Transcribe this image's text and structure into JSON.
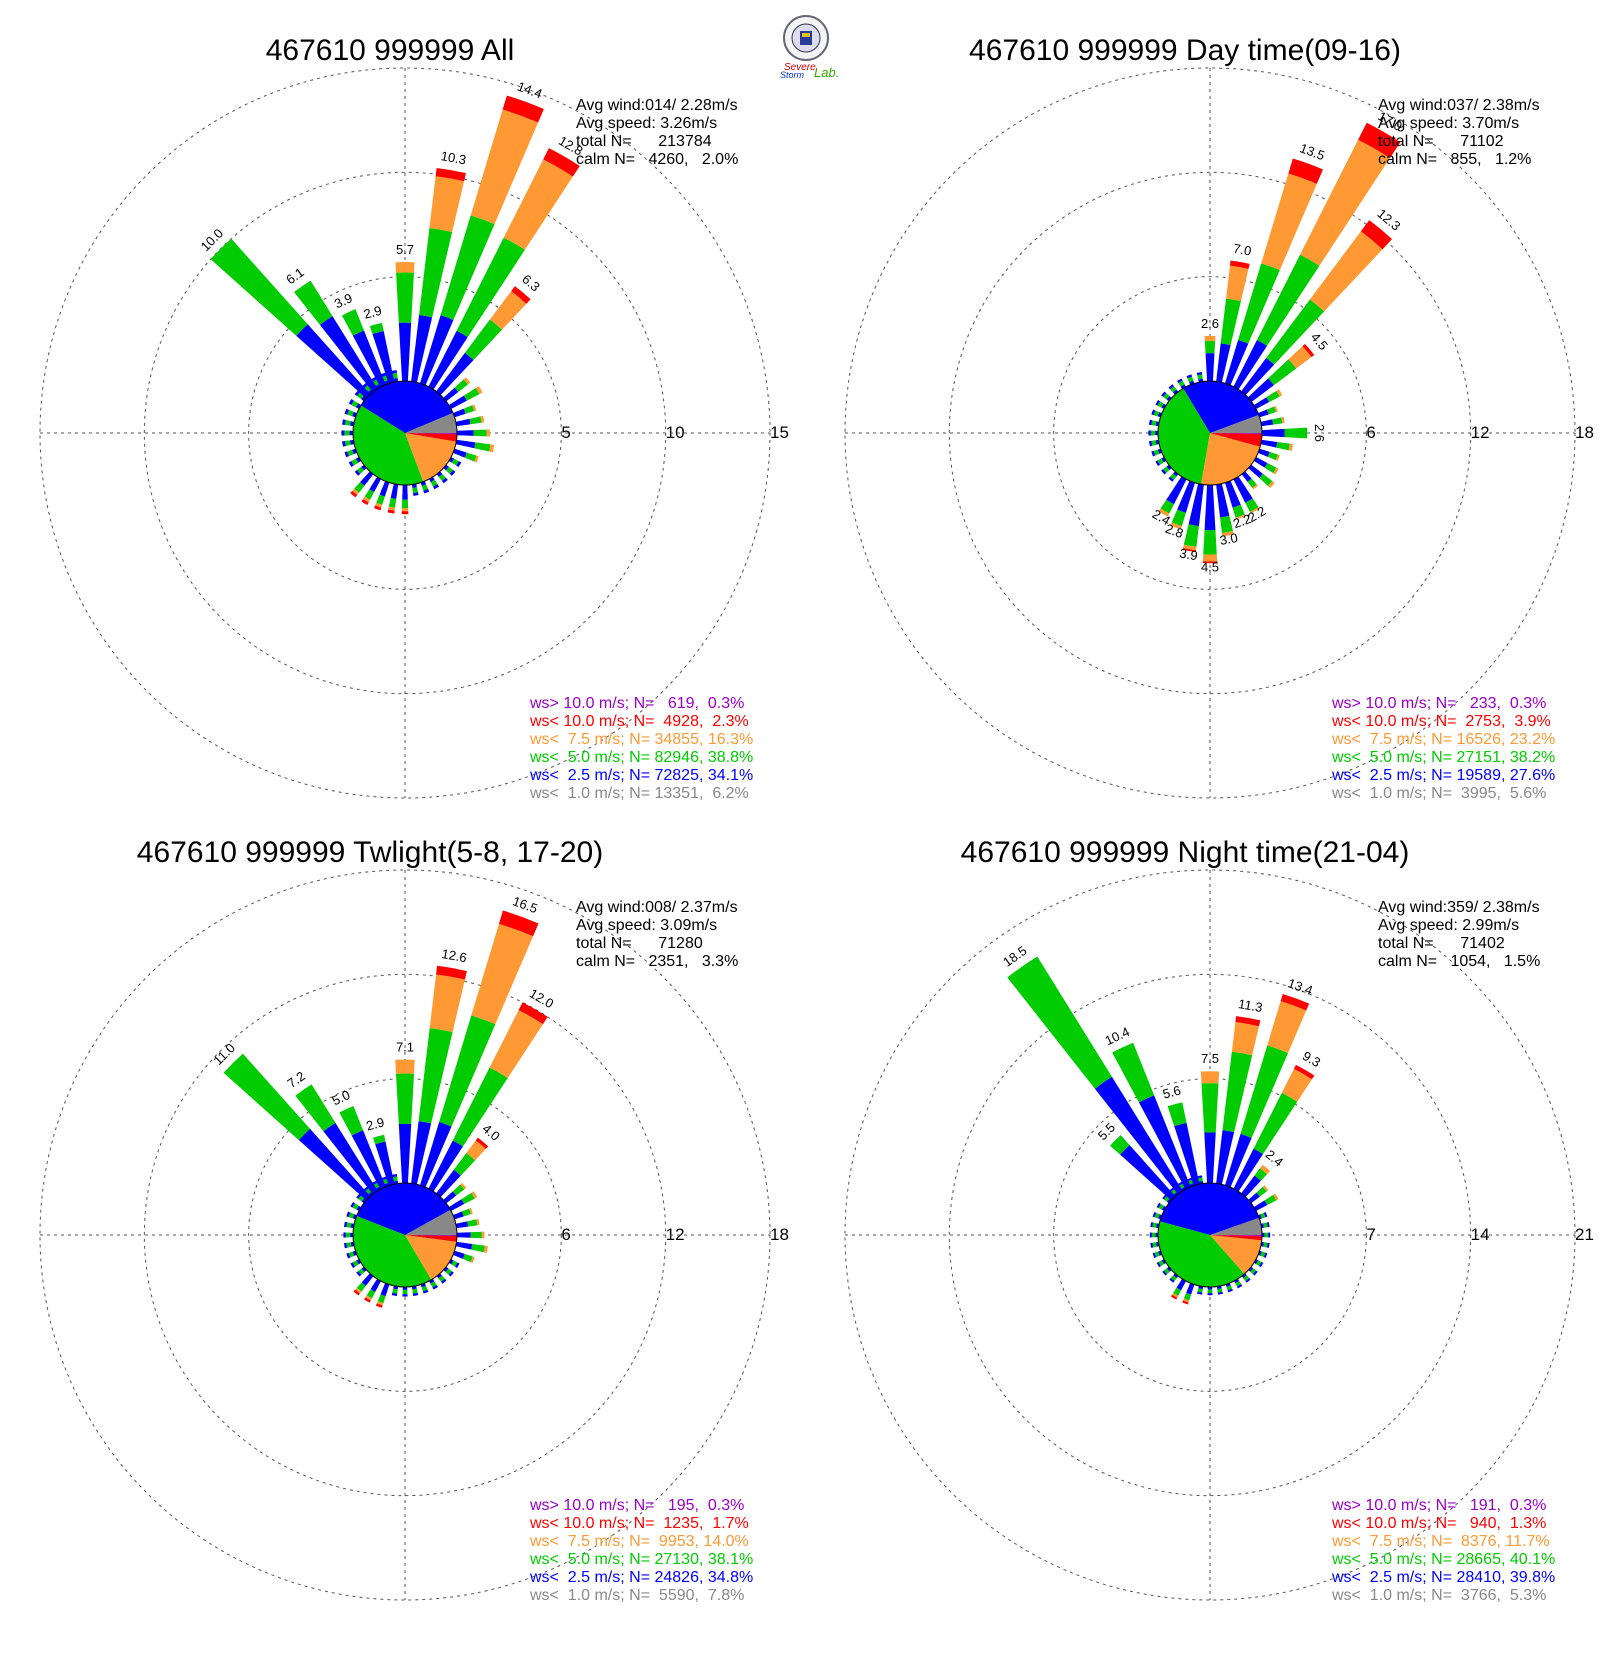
{
  "logo": {
    "top_text": "Severe",
    "bottom_text": "Storm",
    "lab_text": "Lab."
  },
  "colors": {
    "ws_gt10": "#9a00c8",
    "ws_lt10": "#ff0000",
    "ws_lt7_5": "#ff9933",
    "ws_lt5": "#00cc00",
    "ws_lt2_5": "#0000ff",
    "ws_lt1": "#888888",
    "grid": "#555555",
    "text": "#000000"
  },
  "chart_data": [
    {
      "type": "wind-rose",
      "title": "467610 999999 All",
      "rings": [
        5,
        10,
        15
      ],
      "ring_labels": [
        "5",
        "10",
        "15"
      ],
      "stats": [
        "Avg wind:014/ 2.28m/s",
        "Avg speed: 3.26m/s",
        "total N=      213784",
        "calm N=   4260,   2.0%"
      ],
      "legend": [
        {
          "text": "ws> 10.0 m/s; N=   619,  0.3%",
          "color_key": "ws_gt10"
        },
        {
          "text": "ws< 10.0 m/s; N=  4928,  2.3%",
          "color_key": "ws_lt10"
        },
        {
          "text": "ws<  7.5 m/s; N= 34855, 16.3%",
          "color_key": "ws_lt7_5"
        },
        {
          "text": "ws<  5.0 m/s; N= 82946, 38.8%",
          "color_key": "ws_lt5"
        },
        {
          "text": "ws<  2.5 m/s; N= 72825, 34.1%",
          "color_key": "ws_lt2_5"
        },
        {
          "text": "ws<  1.0 m/s; N= 13351,  6.2%",
          "color_key": "ws_lt1"
        }
      ],
      "pie": [
        6.2,
        34.1,
        38.8,
        16.3,
        2.3,
        0.3
      ],
      "spikes": [
        {
          "dir": 315,
          "total": 10.0,
          "parts": [
            0,
            4.5,
            5.5,
            0,
            0,
            0
          ],
          "label": "10.0"
        },
        {
          "dir": 325,
          "total": 6.1,
          "parts": [
            0,
            4.1,
            2.0,
            0,
            0,
            0
          ],
          "label": "6.1"
        },
        {
          "dir": 335,
          "total": 3.9,
          "parts": [
            0,
            2.8,
            1.1,
            0,
            0,
            0
          ],
          "label": "3.9"
        },
        {
          "dir": 345,
          "total": 2.9,
          "parts": [
            0,
            2.5,
            0.4,
            0,
            0,
            0
          ],
          "label": "2.9"
        },
        {
          "dir": 0,
          "total": 5.7,
          "parts": [
            0,
            2.8,
            2.4,
            0.5,
            0,
            0
          ],
          "label": "5.7"
        },
        {
          "dir": 10,
          "total": 10.3,
          "parts": [
            0,
            3.2,
            4.2,
            2.5,
            0.4,
            0
          ],
          "label": "10.3"
        },
        {
          "dir": 20,
          "total": 14.4,
          "parts": [
            0,
            3.4,
            5.0,
            5.3,
            0.7,
            0
          ],
          "label": "14.4"
        },
        {
          "dir": 30,
          "total": 12.8,
          "parts": [
            0,
            3.0,
            5.0,
            4.2,
            0.6,
            0
          ],
          "label": "12.8"
        },
        {
          "dir": 40,
          "total": 6.3,
          "parts": [
            0,
            2.3,
            2.0,
            1.7,
            0.3,
            0
          ],
          "label": "6.3"
        }
      ],
      "small_spikes": {
        "long": [
          50,
          60,
          70,
          80,
          90,
          100,
          110
        ],
        "small_labels": [],
        "south_red": [
          180,
          190,
          200,
          210,
          220
        ]
      }
    },
    {
      "type": "wind-rose",
      "title": "467610 999999 Day time(09-16)",
      "rings": [
        6,
        12,
        18
      ],
      "ring_labels": [
        "6",
        "12",
        "18"
      ],
      "stats": [
        "Avg wind:037/ 2.38m/s",
        "Avg speed: 3.70m/s",
        "total N=      71102",
        "calm N=   855,   1.2%"
      ],
      "legend": [
        {
          "text": "ws> 10.0 m/s; N=   233,  0.3%",
          "color_key": "ws_gt10"
        },
        {
          "text": "ws< 10.0 m/s; N=  2753,  3.9%",
          "color_key": "ws_lt10"
        },
        {
          "text": "ws<  7.5 m/s; N= 16526, 23.2%",
          "color_key": "ws_lt7_5"
        },
        {
          "text": "ws<  5.0 m/s; N= 27151, 38.2%",
          "color_key": "ws_lt5"
        },
        {
          "text": "ws<  2.5 m/s; N= 19589, 27.6%",
          "color_key": "ws_lt2_5"
        },
        {
          "text": "ws<  1.0 m/s; N=  3995,  5.6%",
          "color_key": "ws_lt1"
        }
      ],
      "pie": [
        5.6,
        27.6,
        38.2,
        23.2,
        3.9,
        0.3
      ],
      "spikes": [
        {
          "dir": 0,
          "total": 2.6,
          "parts": [
            0,
            1.6,
            0.7,
            0.3,
            0,
            0
          ],
          "label": "2.6"
        },
        {
          "dir": 10,
          "total": 7.0,
          "parts": [
            0,
            2.2,
            2.6,
            1.9,
            0.3,
            0
          ],
          "label": "7.0"
        },
        {
          "dir": 20,
          "total": 13.5,
          "parts": [
            0,
            2.6,
            4.6,
            5.4,
            0.9,
            0
          ],
          "label": "13.5"
        },
        {
          "dir": 30,
          "total": 17.0,
          "parts": [
            0,
            3.0,
            5.5,
            7.4,
            1.1,
            0
          ],
          "label": "17.0"
        },
        {
          "dir": 40,
          "total": 12.3,
          "parts": [
            0,
            2.4,
            4.2,
            4.9,
            0.8,
            0
          ],
          "label": "12.3"
        },
        {
          "dir": 50,
          "total": 4.5,
          "parts": [
            0,
            1.6,
            1.6,
            1.1,
            0.2,
            0
          ],
          "label": "4.5"
        },
        {
          "dir": 90,
          "total": 2.6,
          "parts": [
            0,
            1.3,
            1.3,
            0,
            0,
            0
          ],
          "label": "2.6"
        },
        {
          "dir": 150,
          "total": 2.2,
          "parts": [
            0,
            1.5,
            0.6,
            0.1,
            0,
            0
          ],
          "label": "2.2"
        },
        {
          "dir": 160,
          "total": 2.2,
          "parts": [
            0,
            1.5,
            0.6,
            0.1,
            0,
            0
          ],
          "label": "2.2"
        },
        {
          "dir": 170,
          "total": 3.0,
          "parts": [
            0,
            1.9,
            0.9,
            0.2,
            0,
            0
          ],
          "label": "3.0"
        },
        {
          "dir": 180,
          "total": 4.5,
          "parts": [
            0,
            2.6,
            1.4,
            0.4,
            0.1,
            0
          ],
          "label": "4.5"
        },
        {
          "dir": 190,
          "total": 3.9,
          "parts": [
            0,
            2.4,
            1.2,
            0.2,
            0.1,
            0
          ],
          "label": "3.9"
        },
        {
          "dir": 200,
          "total": 2.8,
          "parts": [
            0,
            1.8,
            0.8,
            0.2,
            0,
            0
          ],
          "label": "2.8"
        },
        {
          "dir": 210,
          "total": 2.4,
          "parts": [
            0,
            1.6,
            0.6,
            0.2,
            0,
            0
          ],
          "label": "2.4"
        }
      ],
      "small_spikes": {
        "long": [
          60,
          70,
          80,
          100,
          110,
          120,
          130,
          140
        ],
        "small_labels": [],
        "south_red": []
      }
    },
    {
      "type": "wind-rose",
      "title": "467610 999999 Twlight(5-8, 17-20)",
      "rings": [
        6,
        12,
        18
      ],
      "ring_labels": [
        "6",
        "12",
        "18"
      ],
      "stats": [
        "Avg wind:008/ 2.37m/s",
        "Avg speed: 3.09m/s",
        "total N=      71280",
        "calm N=   2351,   3.3%"
      ],
      "legend": [
        {
          "text": "ws> 10.0 m/s; N=   195,  0.3%",
          "color_key": "ws_gt10"
        },
        {
          "text": "ws< 10.0 m/s; N=  1235,  1.7%",
          "color_key": "ws_lt10"
        },
        {
          "text": "ws<  7.5 m/s; N=  9953, 14.0%",
          "color_key": "ws_lt7_5"
        },
        {
          "text": "ws<  5.0 m/s; N= 27130, 38.1%",
          "color_key": "ws_lt5"
        },
        {
          "text": "ws<  2.5 m/s; N= 24826, 34.8%",
          "color_key": "ws_lt2_5"
        },
        {
          "text": "ws<  1.0 m/s; N=  5590,  7.8%",
          "color_key": "ws_lt1"
        }
      ],
      "pie": [
        7.8,
        34.8,
        38.1,
        14.0,
        1.7,
        0.3
      ],
      "spikes": [
        {
          "dir": 315,
          "total": 11.0,
          "parts": [
            0,
            5.2,
            5.8,
            0,
            0,
            0
          ],
          "label": "11.0"
        },
        {
          "dir": 325,
          "total": 7.2,
          "parts": [
            0,
            4.6,
            2.6,
            0,
            0,
            0
          ],
          "label": "7.2"
        },
        {
          "dir": 335,
          "total": 5.0,
          "parts": [
            0,
            3.5,
            1.5,
            0,
            0,
            0
          ],
          "label": "5.0"
        },
        {
          "dir": 345,
          "total": 2.9,
          "parts": [
            0,
            2.5,
            0.4,
            0,
            0,
            0
          ],
          "label": "2.9"
        },
        {
          "dir": 0,
          "total": 7.1,
          "parts": [
            0,
            3.4,
            2.9,
            0.8,
            0,
            0
          ],
          "label": "7.1"
        },
        {
          "dir": 10,
          "total": 12.6,
          "parts": [
            0,
            3.6,
            5.4,
            3.1,
            0.5,
            0
          ],
          "label": "12.6"
        },
        {
          "dir": 20,
          "total": 16.5,
          "parts": [
            0,
            3.8,
            6.4,
            5.5,
            0.8,
            0
          ],
          "label": "16.5"
        },
        {
          "dir": 30,
          "total": 12.0,
          "parts": [
            0,
            3.1,
            4.7,
            3.7,
            0.5,
            0
          ],
          "label": "12.0"
        },
        {
          "dir": 40,
          "total": 4.0,
          "parts": [
            0,
            1.7,
            1.2,
            0.9,
            0.2,
            0
          ],
          "label": "4.0"
        }
      ],
      "small_spikes": {
        "long": [
          50,
          60,
          70,
          80,
          90,
          100,
          110
        ],
        "small_labels": [],
        "south_red": [
          200,
          210,
          220
        ]
      }
    },
    {
      "type": "wind-rose",
      "title": "467610 999999 Night time(21-04)",
      "rings": [
        7,
        14,
        21
      ],
      "ring_labels": [
        "7",
        "14",
        "21"
      ],
      "stats": [
        "Avg wind:359/ 2.38m/s",
        "Avg speed: 2.99m/s",
        "total N=      71402",
        "calm N=   1054,   1.5%"
      ],
      "legend": [
        {
          "text": "ws> 10.0 m/s; N=   191,  0.3%",
          "color_key": "ws_gt10"
        },
        {
          "text": "ws< 10.0 m/s; N=   940,  1.3%",
          "color_key": "ws_lt10"
        },
        {
          "text": "ws<  7.5 m/s; N=  8376, 11.7%",
          "color_key": "ws_lt7_5"
        },
        {
          "text": "ws<  5.0 m/s; N= 28665, 40.1%",
          "color_key": "ws_lt5"
        },
        {
          "text": "ws<  2.5 m/s; N= 28410, 39.8%",
          "color_key": "ws_lt2_5"
        },
        {
          "text": "ws<  1.0 m/s; N=  3766,  5.3%",
          "color_key": "ws_lt1"
        }
      ],
      "pie": [
        5.3,
        39.8,
        40.1,
        11.7,
        1.3,
        0.3
      ],
      "spikes": [
        {
          "dir": 325,
          "total": 18.5,
          "parts": [
            0,
            9.0,
            9.5,
            0,
            0,
            0
          ],
          "label": "18.5"
        },
        {
          "dir": 335,
          "total": 10.4,
          "parts": [
            0,
            6.6,
            3.8,
            0,
            0,
            0
          ],
          "label": "10.4"
        },
        {
          "dir": 345,
          "total": 5.6,
          "parts": [
            0,
            4.2,
            1.4,
            0,
            0,
            0
          ],
          "label": "5.6"
        },
        {
          "dir": 315,
          "total": 5.5,
          "parts": [
            0,
            4.6,
            0.9,
            0,
            0,
            0
          ],
          "label": "5.5"
        },
        {
          "dir": 0,
          "total": 7.5,
          "parts": [
            0,
            3.4,
            3.3,
            0.8,
            0,
            0
          ],
          "label": "7.5"
        },
        {
          "dir": 10,
          "total": 11.3,
          "parts": [
            0,
            3.6,
            5.3,
            2.0,
            0.4,
            0
          ],
          "label": "11.3"
        },
        {
          "dir": 20,
          "total": 13.4,
          "parts": [
            0,
            3.6,
            6.2,
            3.1,
            0.5,
            0
          ],
          "label": "13.4"
        },
        {
          "dir": 30,
          "total": 9.3,
          "parts": [
            0,
            3.0,
            4.2,
            1.8,
            0.3,
            0
          ],
          "label": "9.3"
        },
        {
          "dir": 40,
          "total": 2.4,
          "parts": [
            0,
            1.5,
            0.6,
            0.3,
            0,
            0
          ],
          "label": "2.4"
        }
      ],
      "small_spikes": {
        "long": [
          50,
          60
        ],
        "small_labels": [],
        "south_red": [
          200,
          210
        ]
      }
    }
  ]
}
